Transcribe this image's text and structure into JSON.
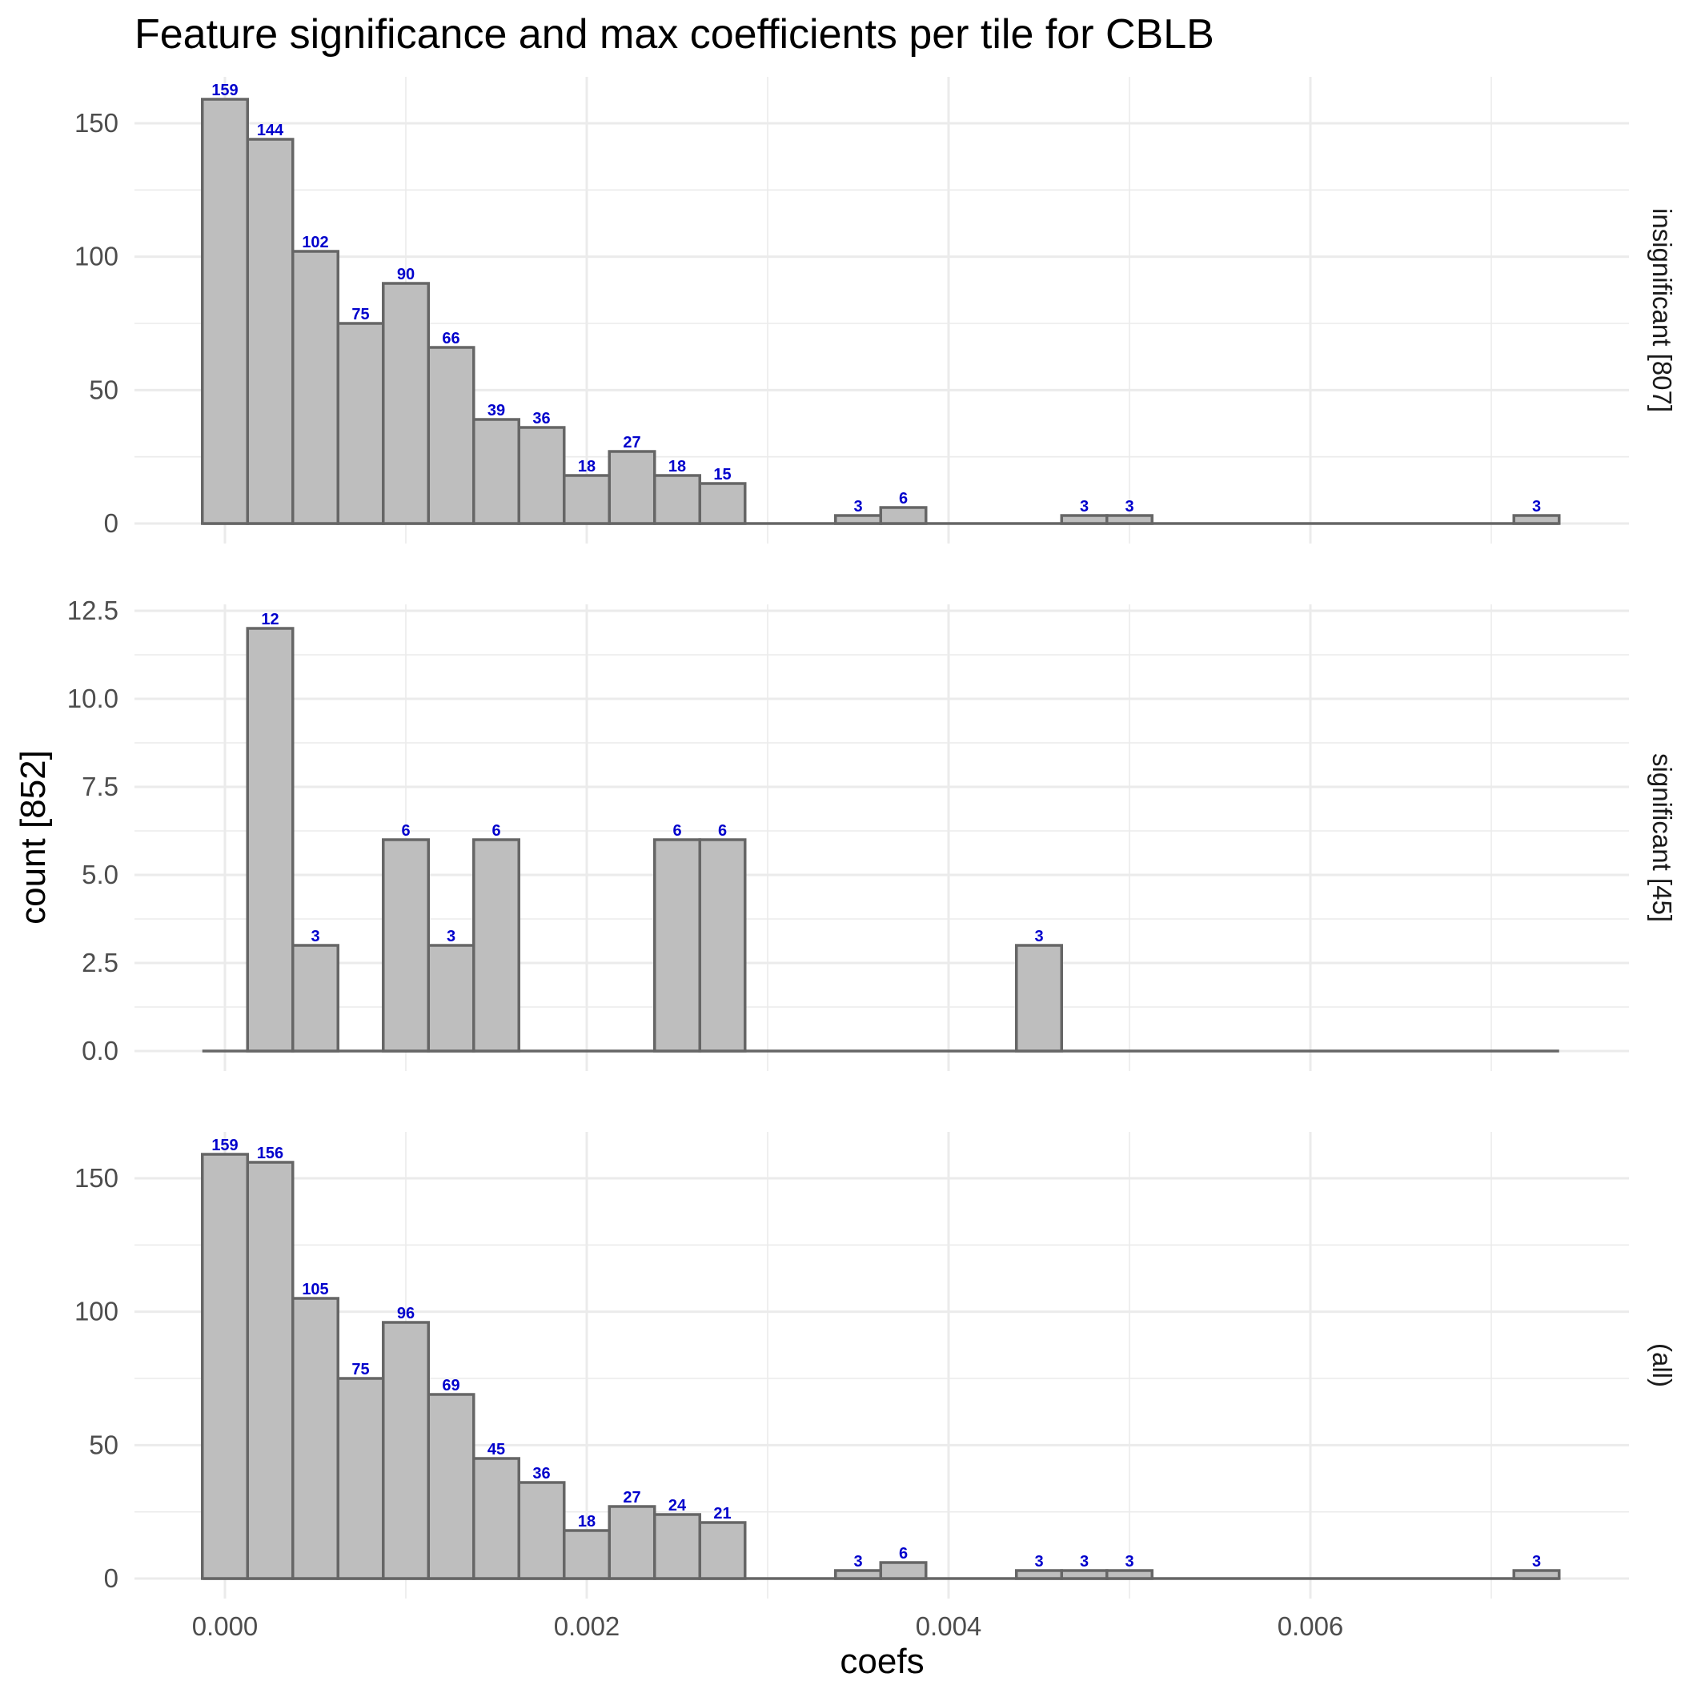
{
  "chart_data": {
    "type": "bar",
    "title": "Feature significance and max coefficients per tile for CBLB",
    "xlabel": "coefs",
    "ylabel": "count [852]",
    "grid": true,
    "legend": "none",
    "bar_fill": "#bebebe",
    "bar_outline": "#666666",
    "label_color": "#0000cc",
    "bin_width": 0.00025,
    "x": [
      0.0,
      0.00025,
      0.0005,
      0.00075,
      0.001,
      0.00125,
      0.0015,
      0.00175,
      0.002,
      0.00225,
      0.0025,
      0.00275,
      0.003,
      0.00325,
      0.0035,
      0.00375,
      0.004,
      0.00425,
      0.0045,
      0.00475,
      0.005,
      0.00525,
      0.0055,
      0.00575,
      0.006,
      0.00625,
      0.0065,
      0.00675,
      0.007,
      0.00725
    ],
    "xlim": [
      -0.0005,
      0.0078
    ],
    "x_ticks": [
      "0.000",
      "0.002",
      "0.004",
      "0.006"
    ],
    "x_tick_values": [
      0.0,
      0.002,
      0.004,
      0.006
    ],
    "facets": [
      {
        "label": "insignificant [807]",
        "ylim": [
          0,
          165
        ],
        "y_ticks": [
          "0",
          "50",
          "100",
          "150"
        ],
        "y_tick_values": [
          0,
          50,
          100,
          150
        ],
        "values": [
          159,
          144,
          102,
          75,
          90,
          66,
          39,
          36,
          18,
          27,
          18,
          15,
          0,
          0,
          3,
          6,
          0,
          0,
          0,
          3,
          3,
          0,
          0,
          0,
          0,
          0,
          0,
          0,
          0,
          3
        ]
      },
      {
        "label": "significant [45]",
        "ylim": [
          0,
          13
        ],
        "y_ticks": [
          "0.0",
          "2.5",
          "5.0",
          "7.5",
          "10.0",
          "12.5"
        ],
        "y_tick_values": [
          0,
          2.5,
          5,
          7.5,
          10,
          12.5
        ],
        "values": [
          0,
          12,
          3,
          0,
          6,
          3,
          6,
          0,
          0,
          0,
          6,
          6,
          0,
          0,
          0,
          0,
          0,
          0,
          3,
          0,
          0,
          0,
          0,
          0,
          0,
          0,
          0,
          0,
          0,
          0
        ]
      },
      {
        "label": "(all)",
        "ylim": [
          0,
          165
        ],
        "y_ticks": [
          "0",
          "50",
          "100",
          "150"
        ],
        "y_tick_values": [
          0,
          50,
          100,
          150
        ],
        "values": [
          159,
          156,
          105,
          75,
          96,
          69,
          45,
          36,
          18,
          27,
          24,
          21,
          0,
          0,
          3,
          6,
          0,
          0,
          3,
          3,
          3,
          0,
          0,
          0,
          0,
          0,
          0,
          0,
          0,
          3
        ]
      }
    ]
  }
}
